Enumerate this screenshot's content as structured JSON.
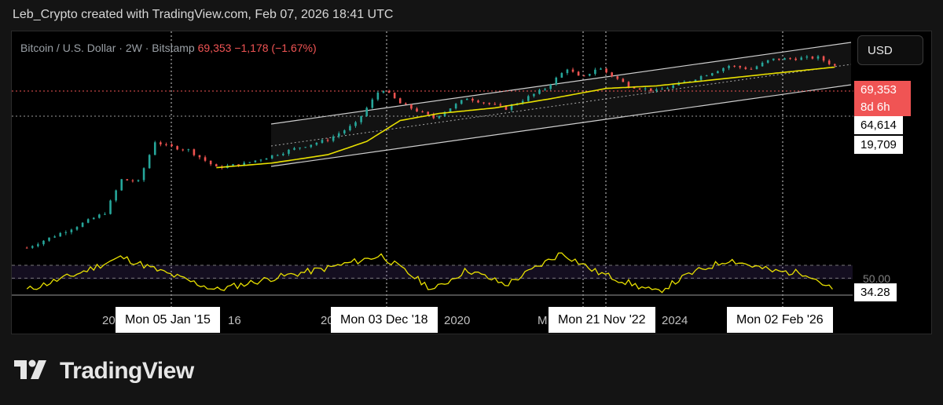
{
  "header": {
    "caption": "Leb_Crypto created with TradingView.com, Feb 07, 2026 18:41 UTC"
  },
  "symbol": {
    "name": "Bitcoin / U.S. Dollar · 2W · Bitstamp",
    "price": "69,353",
    "change": "−1,178 (−1.67%)"
  },
  "currency_button": "USD",
  "price_tags": {
    "last": "69,353",
    "countdown": "8d 6h",
    "level1": "64,614",
    "level2": "19,709"
  },
  "rsi": {
    "mid_label": "50.00",
    "value": "34.28"
  },
  "x_axis": {
    "ticks": [
      "20",
      "16",
      "20",
      "2020",
      "M",
      "2024"
    ],
    "date_labels": [
      "Mon 05 Jan '15",
      "Mon 03 Dec '18",
      "Mon 21 Nov '22",
      "Mon 02 Feb '26"
    ]
  },
  "brand": {
    "name": "TradingView",
    "logo": "tradingview-logo-icon"
  },
  "colors": {
    "up": "#26a69a",
    "down": "#ef5350",
    "ma": "#e8e000",
    "rsi": "#e8e000",
    "channel": "#cfcfcf",
    "price_tag": "#f05454"
  },
  "chart_data": {
    "type": "line",
    "title": "Bitcoin / U.S. Dollar · 2W · Bitstamp",
    "scale": "log",
    "price_series": {
      "name": "BTC/USD close (approx.)",
      "x": [
        2011.6,
        2012.5,
        2013.0,
        2013.3,
        2013.6,
        2013.9,
        2014.1,
        2014.5,
        2015.0,
        2015.5,
        2016.0,
        2016.5,
        2017.0,
        2017.5,
        2017.96,
        2018.3,
        2018.9,
        2019.5,
        2020.2,
        2020.9,
        2021.3,
        2021.55,
        2021.85,
        2022.4,
        2022.9,
        2023.5,
        2024.2,
        2024.6,
        2024.95,
        2025.5,
        2025.8,
        2026.1
      ],
      "y": [
        2,
        7,
        15,
        100,
        90,
        900,
        700,
        550,
        200,
        250,
        400,
        650,
        1000,
        2500,
        19700,
        8000,
        3500,
        11000,
        6000,
        19000,
        60000,
        33000,
        64000,
        22000,
        16500,
        30000,
        70000,
        58000,
        100000,
        108000,
        112000,
        69353
      ]
    },
    "ma_series": {
      "name": "Moving average (approx.)",
      "x": [
        2015.0,
        2016.0,
        2017.0,
        2017.7,
        2018.3,
        2019.0,
        2020.0,
        2021.0,
        2022.0,
        2022.9,
        2024.0,
        2025.0,
        2026.1
      ],
      "y": [
        200,
        260,
        420,
        900,
        3000,
        4500,
        6200,
        10500,
        19000,
        22000,
        32000,
        45000,
        64614
      ]
    },
    "rsi_series": {
      "name": "RSI",
      "x": [
        2011.6,
        2012.5,
        2013.3,
        2014.0,
        2015.0,
        2016.0,
        2017.0,
        2017.96,
        2018.9,
        2019.5,
        2020.2,
        2021.2,
        2021.8,
        2022.9,
        2023.5,
        2024.2,
        2025.0,
        2025.6,
        2026.1
      ],
      "y": [
        36,
        55,
        75,
        58,
        36,
        50,
        62,
        77,
        36,
        60,
        42,
        80,
        58,
        33,
        55,
        72,
        58,
        56,
        34.28
      ]
    },
    "levels": [
      69353,
      64614,
      19709
    ],
    "rsi_midline": 50,
    "markers": [
      "Mon 05 Jan '15",
      "Mon 03 Dec '18",
      "Mon 21 Nov '22",
      "Mon 02 Feb '26"
    ],
    "xlabel": "",
    "ylabel": "USD"
  }
}
